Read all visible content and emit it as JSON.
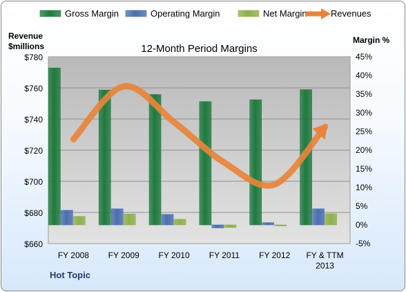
{
  "chart_data": {
    "type": "bar",
    "title": "12-Month Period Margins",
    "company": "Hot Topic",
    "y_left_label": [
      "Revenue",
      "$millions"
    ],
    "y_right_label": "Margin %",
    "categories": [
      [
        "FY 2008"
      ],
      [
        "FY 2009"
      ],
      [
        "FY 2010"
      ],
      [
        "FY 2011"
      ],
      [
        "FY 2012"
      ],
      [
        "FY & TTM",
        "2013"
      ]
    ],
    "y_left": {
      "min": 660,
      "max": 780,
      "step": 20,
      "format": "$"
    },
    "y_right": {
      "min": -5,
      "max": 45,
      "step": 5,
      "format": "%"
    },
    "series": [
      {
        "name": "Gross Margin",
        "type": "bar",
        "axis": "right",
        "color": "#1f7a3e",
        "values": [
          42,
          36.1,
          34.9,
          33,
          33.5,
          36.2
        ]
      },
      {
        "name": "Operating Margin",
        "type": "bar",
        "axis": "right",
        "color": "#4a6fb0",
        "values": [
          3.9,
          4.3,
          2.8,
          -0.8,
          0.6,
          4.3
        ]
      },
      {
        "name": "Net Margin",
        "type": "bar",
        "axis": "right",
        "color": "#8fb04a",
        "values": [
          2.3,
          2.9,
          1.5,
          -0.7,
          -0.2,
          3.0
        ]
      },
      {
        "name": "Revenues",
        "type": "line",
        "axis": "left",
        "color": "#e8843a",
        "values": [
          727,
          761,
          738,
          712,
          698,
          735
        ]
      }
    ],
    "grid": true,
    "legend": "top"
  }
}
